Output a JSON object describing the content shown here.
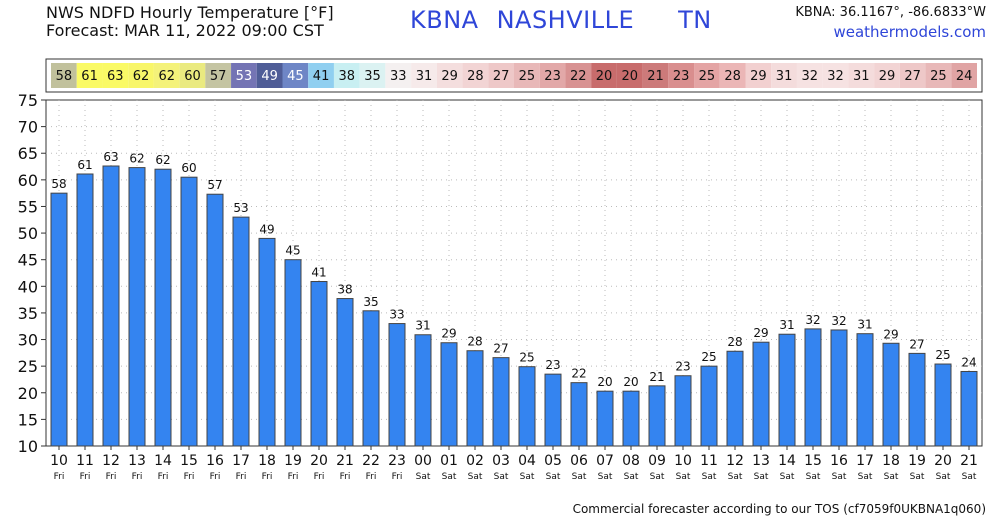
{
  "header": {
    "title_line1": "NWS NDFD Hourly Temperature [°F]",
    "title_line2": "Forecast: MAR 11, 2022 09:00 CST",
    "station_code": "KBNA",
    "station_name": "NASHVILLE",
    "state": "TN",
    "coordinates": "KBNA: 36.1167°, -86.6833°W",
    "website": "weathermodels.com"
  },
  "footer": {
    "disclaimer": "Commercial forecaster according to our TOS (cf7059f0UKBNA1q060)"
  },
  "chart_data": {
    "type": "bar",
    "categories": [
      "10",
      "11",
      "12",
      "13",
      "14",
      "15",
      "16",
      "17",
      "18",
      "19",
      "20",
      "21",
      "22",
      "23",
      "00",
      "01",
      "02",
      "03",
      "04",
      "05",
      "06",
      "07",
      "08",
      "09",
      "10",
      "11",
      "12",
      "13",
      "14",
      "15",
      "16",
      "17",
      "18",
      "19",
      "20",
      "21"
    ],
    "days": [
      "Fri",
      "Fri",
      "Fri",
      "Fri",
      "Fri",
      "Fri",
      "Fri",
      "Fri",
      "Fri",
      "Fri",
      "Fri",
      "Fri",
      "Fri",
      "Fri",
      "Sat",
      "Sat",
      "Sat",
      "Sat",
      "Sat",
      "Sat",
      "Sat",
      "Sat",
      "Sat",
      "Sat",
      "Sat",
      "Sat",
      "Sat",
      "Sat",
      "Sat",
      "Sat",
      "Sat",
      "Sat",
      "Sat",
      "Sat",
      "Sat",
      "Sat"
    ],
    "values": [
      57.5,
      61.1,
      62.6,
      62.3,
      62.0,
      60.5,
      57.3,
      53.0,
      49.0,
      45.0,
      40.9,
      37.7,
      35.4,
      33.0,
      30.9,
      29.4,
      27.9,
      26.6,
      24.9,
      23.5,
      21.9,
      20.3,
      20.3,
      21.3,
      23.2,
      25.0,
      27.8,
      29.5,
      31.0,
      32.0,
      31.8,
      31.1,
      29.3,
      27.4,
      25.4,
      24.0
    ],
    "labels": [
      "58",
      "61",
      "63",
      "62",
      "62",
      "60",
      "57",
      "53",
      "49",
      "45",
      "41",
      "38",
      "35",
      "33",
      "31",
      "29",
      "28",
      "27",
      "25",
      "23",
      "22",
      "20",
      "20",
      "21",
      "23",
      "25",
      "28",
      "29",
      "31",
      "32",
      "32",
      "31",
      "29",
      "27",
      "25",
      "24"
    ],
    "strip_colors": [
      "#c1c19c",
      "#fafa66",
      "#fafa66",
      "#f8f66a",
      "#f4f27a",
      "#eaea80",
      "#c4c4a2",
      "#7474b4",
      "#4f5d97",
      "#6e86c6",
      "#90cff0",
      "#c8eff2",
      "#dbf2f2",
      "#f4f0f0",
      "#f6eaea",
      "#f4dede",
      "#f2d4d4",
      "#eec8c8",
      "#e8b8b8",
      "#e2a8a8",
      "#d89292",
      "#c86c6c",
      "#c86c6c",
      "#cc7a7a",
      "#d98e8e",
      "#e4a4a4",
      "#ebb6b6",
      "#f2d0d0",
      "#f4dcdc",
      "#f6e2e2",
      "#f6e2e2",
      "#f4dcdc",
      "#f2d4d4",
      "#eec8c8",
      "#e8b8b8",
      "#e0a4a4"
    ],
    "ylim": [
      10,
      75
    ],
    "yticks": [
      10,
      15,
      20,
      25,
      30,
      35,
      40,
      45,
      50,
      55,
      60,
      65,
      70,
      75
    ],
    "bar_color": "#3484f0",
    "grid": true,
    "xlabel": "",
    "ylabel": ""
  }
}
